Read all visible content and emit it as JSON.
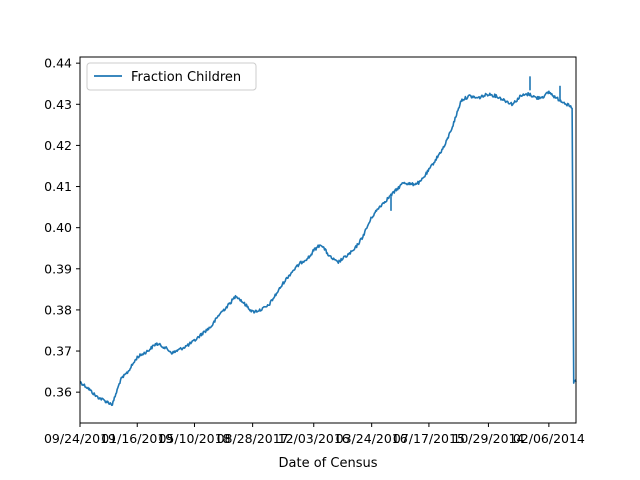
{
  "chart_data": {
    "type": "line",
    "title": "",
    "xlabel": "Date of Census",
    "ylabel": "",
    "x_tick_labels": [
      "09/24/2019",
      "01/16/2019",
      "05/10/2018",
      "08/28/2017",
      "12/03/2016",
      "03/24/2016",
      "07/17/2015",
      "10/29/2014",
      "02/06/2014"
    ],
    "y_ticks": [
      0.36,
      0.37,
      0.38,
      0.39,
      0.4,
      0.41,
      0.42,
      0.43,
      0.44
    ],
    "y_tick_labels": [
      "0.36",
      "0.37",
      "0.38",
      "0.39",
      "0.40",
      "0.41",
      "0.42",
      "0.43",
      "0.44"
    ],
    "ylim": [
      0.3525,
      0.4415
    ],
    "x_reversed": true,
    "grid": false,
    "legend_position": "top-left",
    "colors": {
      "series": "#1f77b4",
      "axes": "#000000",
      "legend_border": "#cccccc"
    },
    "series": [
      {
        "name": "Fraction Children",
        "x": [
          "09/24/2019",
          "08/20/2019",
          "07/15/2019",
          "06/10/2019",
          "05/05/2019",
          "03/30/2019",
          "02/25/2019",
          "01/16/2019",
          "12/01/2018",
          "10/25/2018",
          "09/20/2018",
          "08/15/2018",
          "07/10/2018",
          "06/05/2018",
          "05/10/2018",
          "04/01/2018",
          "02/25/2018",
          "01/20/2018",
          "12/15/2017",
          "11/08/2017",
          "10/03/2017",
          "08/28/2017",
          "07/25/2017",
          "06/20/2017",
          "05/15/2017",
          "04/10/2017",
          "03/05/2017",
          "01/28/2017",
          "12/20/2016",
          "12/03/2016",
          "11/01/2016",
          "09/25/2016",
          "08/20/2016",
          "07/15/2016",
          "06/10/2016",
          "05/05/2016",
          "03/24/2016",
          "02/20/2016",
          "01/15/2016",
          "12/10/2015",
          "11/05/2015",
          "09/30/2015",
          "08/25/2015",
          "07/17/2015",
          "06/12/2015",
          "05/08/2015",
          "04/02/2015",
          "02/25/2015",
          "01/20/2015",
          "12/15/2014",
          "10/29/2014",
          "09/25/2014",
          "08/20/2014",
          "07/15/2014",
          "06/10/2014",
          "05/05/2014",
          "03/30/2014",
          "02/25/2014",
          "02/06/2014",
          "01/05/2014",
          "12/01/2013",
          "10/27/2013",
          "10/20/2013",
          "10/15/2013",
          "10/10/2013"
        ],
        "values": [
          0.3625,
          0.361,
          0.359,
          0.358,
          0.357,
          0.363,
          0.365,
          0.3685,
          0.37,
          0.3718,
          0.371,
          0.3695,
          0.3705,
          0.3715,
          0.3725,
          0.3745,
          0.376,
          0.379,
          0.381,
          0.3835,
          0.3815,
          0.3795,
          0.38,
          0.381,
          0.384,
          0.387,
          0.3895,
          0.3915,
          0.393,
          0.3945,
          0.396,
          0.393,
          0.3915,
          0.393,
          0.3945,
          0.3975,
          0.4025,
          0.405,
          0.407,
          0.409,
          0.411,
          0.4105,
          0.411,
          0.414,
          0.417,
          0.42,
          0.425,
          0.431,
          0.432,
          0.4315,
          0.4325,
          0.432,
          0.431,
          0.43,
          0.432,
          0.4325,
          0.4315,
          0.432,
          0.433,
          0.4315,
          0.4305,
          0.429,
          0.362,
          0.363,
          0.3625
        ]
      }
    ]
  }
}
